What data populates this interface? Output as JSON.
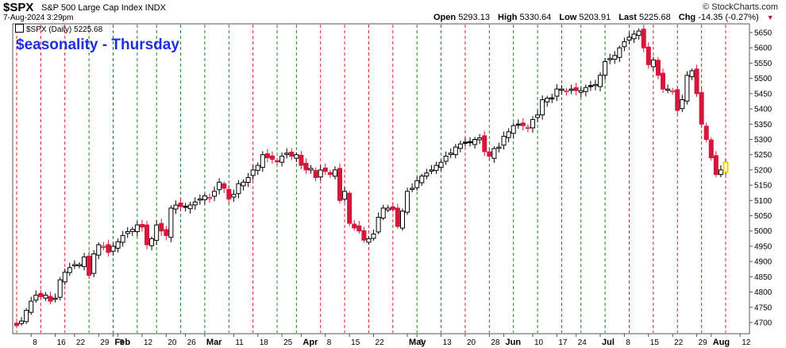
{
  "header": {
    "symbol": "$SPX",
    "description": "S&P 500 Large Cap Index  INDX",
    "datetime": "7-Aug-2024 3:29pm",
    "brand": "© StockCharts.com",
    "open_label": "Open",
    "open": "5293.13",
    "high_label": "High",
    "high": "5330.64",
    "low_label": "Low",
    "low": "5203.91",
    "last_label": "Last",
    "last": "5225.68",
    "chg_label": "Chg",
    "chg": "-14.35 (-0.27%)",
    "arrow_icon": "▼"
  },
  "legend": {
    "text": "$SPX (Daily) 5225.68"
  },
  "chart_data": {
    "type": "candlestick",
    "title": "$easonality - Thursday",
    "ylim": [
      4650,
      5700
    ],
    "yticks": [
      4700,
      4750,
      4800,
      4850,
      4900,
      4950,
      5000,
      5050,
      5100,
      5150,
      5200,
      5250,
      5300,
      5350,
      5400,
      5450,
      5500,
      5550,
      5600,
      5650
    ],
    "xticks": [
      {
        "label": "8",
        "i": 3
      },
      {
        "label": "16",
        "i": 8
      },
      {
        "label": "22",
        "i": 12
      },
      {
        "label": "29",
        "i": 17
      },
      {
        "label": "Feb",
        "i": 20,
        "bold": true
      },
      {
        "label": "5",
        "i": 21
      },
      {
        "label": "12",
        "i": 26
      },
      {
        "label": "20",
        "i": 31
      },
      {
        "label": "26",
        "i": 35
      },
      {
        "label": "Mar",
        "i": 39,
        "bold": true
      },
      {
        "label": "11",
        "i": 45
      },
      {
        "label": "18",
        "i": 50
      },
      {
        "label": "25",
        "i": 55
      },
      {
        "label": "Apr",
        "i": 59,
        "bold": true
      },
      {
        "label": "8",
        "i": 64
      },
      {
        "label": "15",
        "i": 69
      },
      {
        "label": "22",
        "i": 74
      },
      {
        "label": "May",
        "i": 81,
        "bold": true
      },
      {
        "label": "6",
        "i": 83
      },
      {
        "label": "13",
        "i": 88
      },
      {
        "label": "20",
        "i": 93
      },
      {
        "label": "28",
        "i": 98
      },
      {
        "label": "Jun",
        "i": 101,
        "bold": true
      },
      {
        "label": "10",
        "i": 107
      },
      {
        "label": "17",
        "i": 112
      },
      {
        "label": "24",
        "i": 116
      },
      {
        "label": "Jul",
        "i": 121,
        "bold": true
      },
      {
        "label": "8",
        "i": 126
      },
      {
        "label": "15",
        "i": 131
      },
      {
        "label": "22",
        "i": 136
      },
      {
        "label": "29",
        "i": 141
      },
      {
        "label": "Aug",
        "i": 144,
        "bold": true
      },
      {
        "label": "12",
        "i": 150
      }
    ],
    "thursday_lines": [
      {
        "i": 0,
        "result": "down"
      },
      {
        "i": 5,
        "result": "down"
      },
      {
        "i": 10,
        "result": "down"
      },
      {
        "i": 15,
        "result": "up"
      },
      {
        "i": 20,
        "result": "up"
      },
      {
        "i": 25,
        "result": "up"
      },
      {
        "i": 29,
        "result": "up"
      },
      {
        "i": 34,
        "result": "up"
      },
      {
        "i": 39,
        "result": "up"
      },
      {
        "i": 44,
        "result": "up"
      },
      {
        "i": 49,
        "result": "down"
      },
      {
        "i": 54,
        "result": "up"
      },
      {
        "i": 58,
        "result": "up"
      },
      {
        "i": 63,
        "result": "down"
      },
      {
        "i": 68,
        "result": "down"
      },
      {
        "i": 73,
        "result": "down"
      },
      {
        "i": 78,
        "result": "down"
      },
      {
        "i": 83,
        "result": "up"
      },
      {
        "i": 88,
        "result": "up"
      },
      {
        "i": 93,
        "result": "down"
      },
      {
        "i": 98,
        "result": "up"
      },
      {
        "i": 103,
        "result": "up"
      },
      {
        "i": 108,
        "result": "up"
      },
      {
        "i": 113,
        "result": "down"
      },
      {
        "i": 117,
        "result": "up"
      },
      {
        "i": 122,
        "result": "up"
      },
      {
        "i": 127,
        "result": "down"
      },
      {
        "i": 132,
        "result": "down"
      },
      {
        "i": 137,
        "result": "down"
      },
      {
        "i": 142,
        "result": "down"
      },
      {
        "i": 147,
        "result": "down"
      }
    ],
    "closes": [
      4690,
      4705,
      4740,
      4770,
      4790,
      4785,
      4790,
      4770,
      4780,
      4840,
      4865,
      4880,
      4890,
      4890,
      4915,
      4855,
      4925,
      4955,
      4950,
      4930,
      4950,
      4965,
      4985,
      4998,
      5005,
      5020,
      5013,
      4955,
      4975,
      5020,
      5000,
      4985,
      5075,
      5085,
      5080,
      5080,
      5085,
      5095,
      5105,
      5115,
      5110,
      5130,
      5160,
      5140,
      5105,
      5120,
      5155,
      5160,
      5175,
      5200,
      5215,
      5250,
      5240,
      5235,
      5230,
      5245,
      5255,
      5245,
      5250,
      5215,
      5200,
      5205,
      5175,
      5200,
      5195,
      5185,
      5200,
      5100,
      5130,
      5025,
      5010,
      5000,
      4970,
      4975,
      4990,
      5045,
      5075,
      5075,
      5070,
      5015,
      5065,
      5130,
      5140,
      5165,
      5180,
      5190,
      5200,
      5215,
      5225,
      5245,
      5255,
      5275,
      5285,
      5290,
      5290,
      5300,
      5305,
      5260,
      5245,
      5270,
      5275,
      5310,
      5325,
      5345,
      5350,
      5345,
      5340,
      5365,
      5380,
      5430,
      5435,
      5435,
      5465,
      5465,
      5460,
      5465,
      5460,
      5460,
      5470,
      5475,
      5480,
      5510,
      5555,
      5565,
      5575,
      5600,
      5620,
      5635,
      5645,
      5655,
      5600,
      5545,
      5560,
      5510,
      5465,
      5465,
      5460,
      5395,
      5430,
      5510,
      5525,
      5450,
      5350,
      5300,
      5240,
      5185,
      5200,
      5225
    ],
    "highlight_last": true
  }
}
